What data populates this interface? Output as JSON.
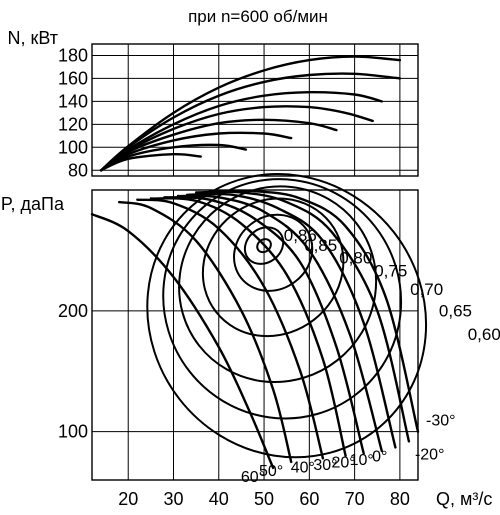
{
  "chart_data": {
    "type": "line",
    "title": "при n=600 об/мин",
    "xlabel": "Q, м³/с",
    "x_ticks": [
      20,
      30,
      40,
      50,
      60,
      70,
      80
    ],
    "xlim": [
      12,
      84
    ],
    "grid": true,
    "power_panel": {
      "ylabel": "N, кВт",
      "y_ticks": [
        80,
        100,
        120,
        140,
        160,
        180
      ],
      "ylim": [
        75,
        190
      ],
      "series": [
        {
          "points": [
            [
              14,
              80
            ],
            [
              20,
              101
            ],
            [
              30,
              130
            ],
            [
              40,
              152
            ],
            [
              50,
              167
            ],
            [
              60,
              176
            ],
            [
              70,
              179
            ],
            [
              80,
              176
            ]
          ]
        },
        {
          "points": [
            [
              14,
              80
            ],
            [
              20,
              100
            ],
            [
              30,
              126
            ],
            [
              40,
              145
            ],
            [
              50,
              157
            ],
            [
              60,
              163
            ],
            [
              70,
              164
            ],
            [
              80,
              160
            ]
          ]
        },
        {
          "points": [
            [
              14,
              80
            ],
            [
              20,
              98
            ],
            [
              30,
              120
            ],
            [
              40,
              136
            ],
            [
              50,
              145
            ],
            [
              60,
              148
            ],
            [
              70,
              146
            ],
            [
              76,
              140
            ]
          ]
        },
        {
          "points": [
            [
              14,
              80
            ],
            [
              20,
              97
            ],
            [
              30,
              116
            ],
            [
              40,
              129
            ],
            [
              50,
              135
            ],
            [
              60,
              135
            ],
            [
              68,
              130
            ],
            [
              74,
              123
            ]
          ]
        },
        {
          "points": [
            [
              14,
              80
            ],
            [
              20,
              96
            ],
            [
              30,
              111
            ],
            [
              40,
              121
            ],
            [
              50,
              124
            ],
            [
              60,
              121
            ],
            [
              66,
              115
            ]
          ]
        },
        {
          "points": [
            [
              14,
              80
            ],
            [
              20,
              94
            ],
            [
              30,
              106
            ],
            [
              40,
              112
            ],
            [
              50,
              112
            ],
            [
              56,
              108
            ]
          ]
        },
        {
          "points": [
            [
              14,
              80
            ],
            [
              20,
              92
            ],
            [
              30,
              100
            ],
            [
              40,
              102
            ],
            [
              46,
              98
            ]
          ]
        },
        {
          "points": [
            [
              14,
              80
            ],
            [
              20,
              90
            ],
            [
              30,
              94
            ],
            [
              36,
              92
            ]
          ]
        }
      ]
    },
    "pressure_panel": {
      "ylabel": "P, даПа",
      "y_ticks": [
        100,
        200
      ],
      "ylim": [
        60,
        300
      ],
      "blade_angle_curves": [
        {
          "label": "60°",
          "points": [
            [
              12,
              280
            ],
            [
              20,
              266
            ],
            [
              30,
              228
            ],
            [
              40,
              170
            ],
            [
              47,
              115
            ],
            [
              52,
              70
            ]
          ]
        },
        {
          "label": "50°",
          "points": [
            [
              18,
              290
            ],
            [
              25,
              285
            ],
            [
              35,
              258
            ],
            [
              45,
              200
            ],
            [
              52,
              135
            ],
            [
              56,
              75
            ]
          ]
        },
        {
          "label": "40°",
          "points": [
            [
              22,
              292
            ],
            [
              30,
              289
            ],
            [
              40,
              268
            ],
            [
              50,
              220
            ],
            [
              58,
              150
            ],
            [
              63,
              78
            ]
          ]
        },
        {
          "label": "30°",
          "points": [
            [
              25,
              293
            ],
            [
              35,
              291
            ],
            [
              45,
              272
            ],
            [
              55,
              230
            ],
            [
              63,
              160
            ],
            [
              68,
              80
            ]
          ]
        },
        {
          "label": "20°",
          "points": [
            [
              28,
              294
            ],
            [
              38,
              292
            ],
            [
              48,
              276
            ],
            [
              58,
              240
            ],
            [
              66,
              170
            ],
            [
              72,
              82
            ]
          ]
        },
        {
          "label": "10°",
          "points": [
            [
              31,
              295
            ],
            [
              40,
              294
            ],
            [
              50,
              282
            ],
            [
              60,
              250
            ],
            [
              69,
              180
            ],
            [
              76,
              84
            ]
          ]
        },
        {
          "label": "0°",
          "points": [
            [
              33,
              296
            ],
            [
              43,
              296
            ],
            [
              53,
              285
            ],
            [
              63,
              258
            ],
            [
              72,
              190
            ],
            [
              79,
              87
            ]
          ]
        },
        {
          "label": "-20°",
          "points": [
            [
              35,
              298
            ],
            [
              45,
              298
            ],
            [
              55,
              290
            ],
            [
              65,
              265
            ],
            [
              75,
              200
            ],
            [
              82,
              92
            ]
          ]
        },
        {
          "label": "-30°",
          "points": [
            [
              38,
              299
            ],
            [
              48,
              299
            ],
            [
              58,
              293
            ],
            [
              68,
              270
            ],
            [
              77,
              210
            ],
            [
              84,
              100
            ]
          ]
        }
      ],
      "efficiency_contours": [
        {
          "label": "0,86",
          "center": [
            50,
            254
          ],
          "radius": [
            1.6,
            5
          ]
        },
        {
          "label": "0,85",
          "center": [
            50,
            254
          ],
          "radius": [
            4.5,
            14
          ]
        },
        {
          "label": "0,80",
          "center": [
            52,
            248
          ],
          "radius": [
            9,
            30
          ]
        },
        {
          "label": "0,75",
          "center": [
            52,
            236
          ],
          "radius": [
            16,
            55
          ]
        },
        {
          "label": "0,70",
          "center": [
            53,
            222
          ],
          "radius": [
            22,
            80
          ]
        },
        {
          "label": "0,65",
          "center": [
            54,
            210
          ],
          "radius": [
            26,
            100
          ]
        },
        {
          "label": "0,60",
          "center": [
            55,
            196
          ],
          "radius": [
            30,
            120
          ]
        }
      ]
    }
  }
}
